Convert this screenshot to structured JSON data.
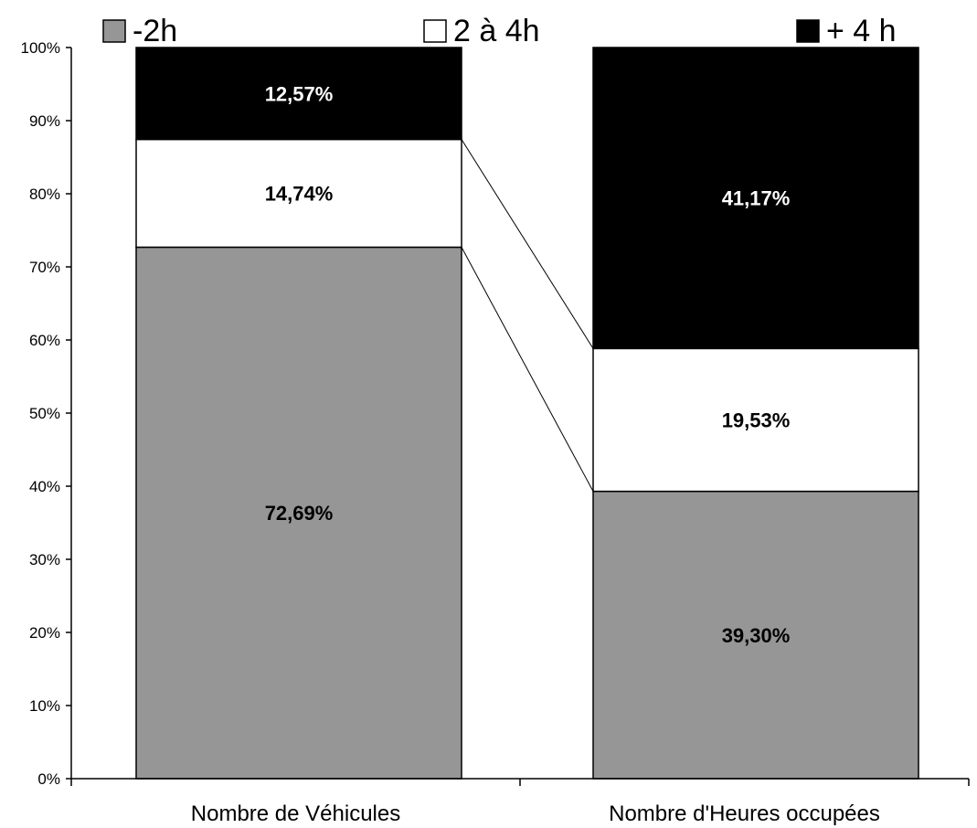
{
  "chart_data": {
    "type": "bar",
    "stacked": true,
    "categories": [
      "Nombre de Véhicules",
      "Nombre d'Heures occupées"
    ],
    "series": [
      {
        "name": "-2h",
        "values": [
          72.69,
          39.3
        ],
        "labels": [
          "72,69%",
          "39,30%"
        ],
        "color": "#969696",
        "label_color": "#000000"
      },
      {
        "name": "2 à 4h",
        "values": [
          14.74,
          19.53
        ],
        "labels": [
          "14,74%",
          "19,53%"
        ],
        "color": "#ffffff",
        "label_color": "#000000"
      },
      {
        "name": "+ 4 h",
        "values": [
          12.57,
          41.17
        ],
        "labels": [
          "12,57%",
          "41,17%"
        ],
        "color": "#000000",
        "label_color": "#ffffff"
      }
    ],
    "ylim": [
      0,
      100
    ],
    "yticks": [
      "0%",
      "10%",
      "20%",
      "30%",
      "40%",
      "50%",
      "60%",
      "70%",
      "80%",
      "90%",
      "100%"
    ],
    "xlabel": "",
    "ylabel": "",
    "title": "",
    "legend_position": "top",
    "series_connector_lines": true
  }
}
